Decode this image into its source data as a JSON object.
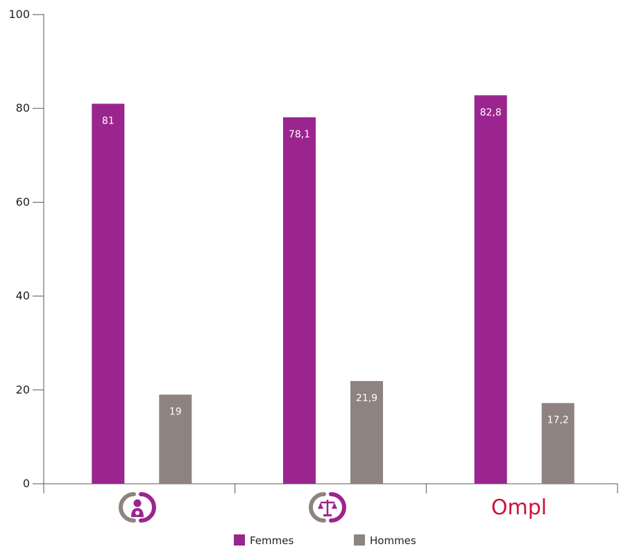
{
  "chart_data": {
    "type": "bar",
    "categories": [
      "",
      "",
      "Ompl"
    ],
    "category_icons": [
      "family-person-icon",
      "justice-scales-icon",
      "ompl-logo"
    ],
    "series": [
      {
        "name": "Femmes",
        "values": [
          81,
          78.1,
          82.8
        ],
        "labels": [
          "81",
          "78,1",
          "82,8"
        ],
        "color": "#9B258F"
      },
      {
        "name": "Hommes",
        "values": [
          19,
          21.9,
          17.2
        ],
        "labels": [
          "19",
          "21,9",
          "17,2"
        ],
        "color": "#8E8380"
      }
    ],
    "yticks": [
      "0",
      "20",
      "40",
      "60",
      "80",
      "100"
    ],
    "ylim": [
      0,
      100
    ],
    "grid": false,
    "legend": "bottom-center",
    "colors": {
      "icon_gray": "#8E8380",
      "icon_purple": "#9B258F",
      "ompl_red": "#D0103A"
    }
  }
}
